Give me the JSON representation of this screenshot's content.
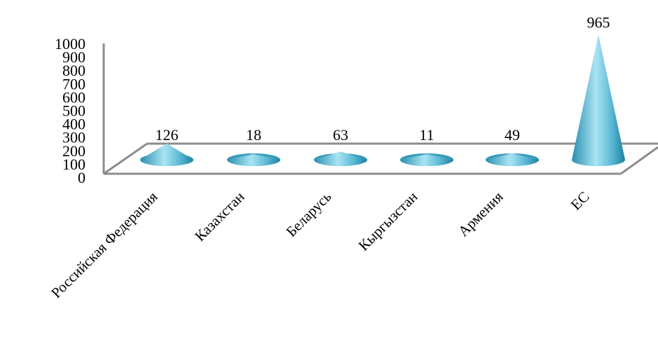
{
  "chart_data": {
    "type": "bar",
    "style": "3d-cone",
    "title": "",
    "xlabel": "",
    "ylabel": "",
    "ylim": [
      0,
      1000
    ],
    "yticks": [
      0,
      100,
      200,
      300,
      400,
      500,
      600,
      700,
      800,
      900,
      1000
    ],
    "grid": false,
    "legend": "none",
    "categories": [
      "Российская Федерация",
      "Казахстан",
      "Беларусь",
      "Кыргызстан",
      "Армения",
      "ЕС"
    ],
    "values": [
      126,
      18,
      63,
      11,
      49,
      965
    ],
    "value_labels": [
      "126",
      "18",
      "63",
      "11",
      "49",
      "965"
    ],
    "colors": {
      "cone": "#4aa9c6",
      "cone_light": "#a9e4f3",
      "cone_dark": "#1f7f9f",
      "axis": "#8c8c8c"
    }
  }
}
